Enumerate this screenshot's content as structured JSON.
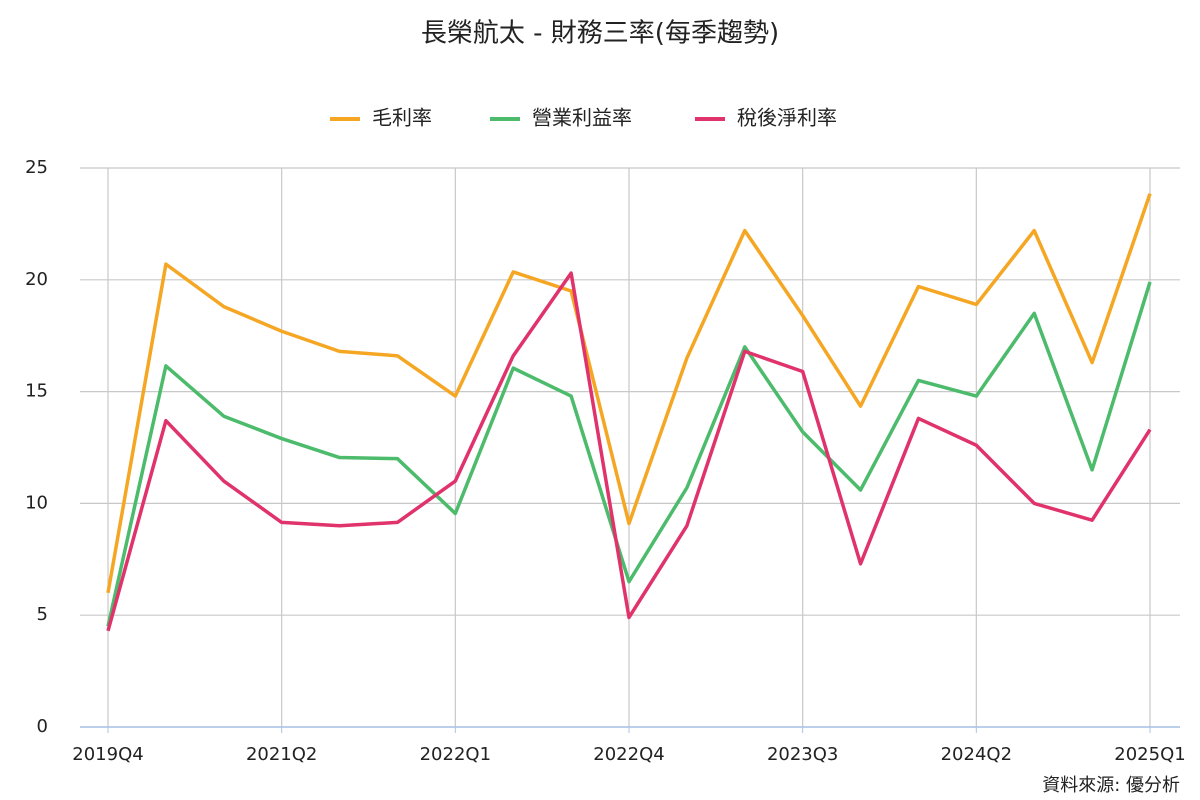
{
  "chart_data": {
    "type": "line",
    "title": "長榮航太 - 財務三率(每季趨勢)",
    "source": "資料來源: 優分析",
    "categories": [
      "2019Q4",
      null,
      null,
      "2021Q2",
      null,
      null,
      "2022Q1",
      null,
      null,
      "2022Q4",
      null,
      null,
      "2023Q3",
      null,
      null,
      "2024Q2",
      null,
      null,
      "2025Q1"
    ],
    "series": [
      {
        "name": "毛利率",
        "color": "#f5a623",
        "values": [
          6.0,
          20.7,
          18.8,
          17.7,
          16.8,
          16.6,
          14.8,
          20.35,
          19.5,
          9.1,
          16.5,
          22.2,
          18.4,
          14.35,
          19.7,
          18.9,
          22.2,
          16.3,
          23.85
        ]
      },
      {
        "name": "營業利益率",
        "color": "#4cbb6c",
        "values": [
          4.5,
          16.15,
          13.9,
          12.9,
          12.05,
          12.0,
          9.55,
          16.05,
          14.8,
          6.5,
          10.7,
          17.0,
          13.2,
          10.6,
          15.5,
          14.8,
          18.5,
          11.5,
          19.9
        ]
      },
      {
        "name": "稅後淨利率",
        "color": "#e0336c",
        "values": [
          4.3,
          13.7,
          11.0,
          9.15,
          9.0,
          9.15,
          11.0,
          16.6,
          20.3,
          4.9,
          9.0,
          16.8,
          15.9,
          7.3,
          13.8,
          12.6,
          10.0,
          9.25,
          13.3
        ]
      }
    ],
    "ylim": [
      0,
      25
    ],
    "yticks": [
      0,
      5,
      10,
      15,
      20,
      25
    ],
    "grid": true,
    "legend": "top"
  }
}
